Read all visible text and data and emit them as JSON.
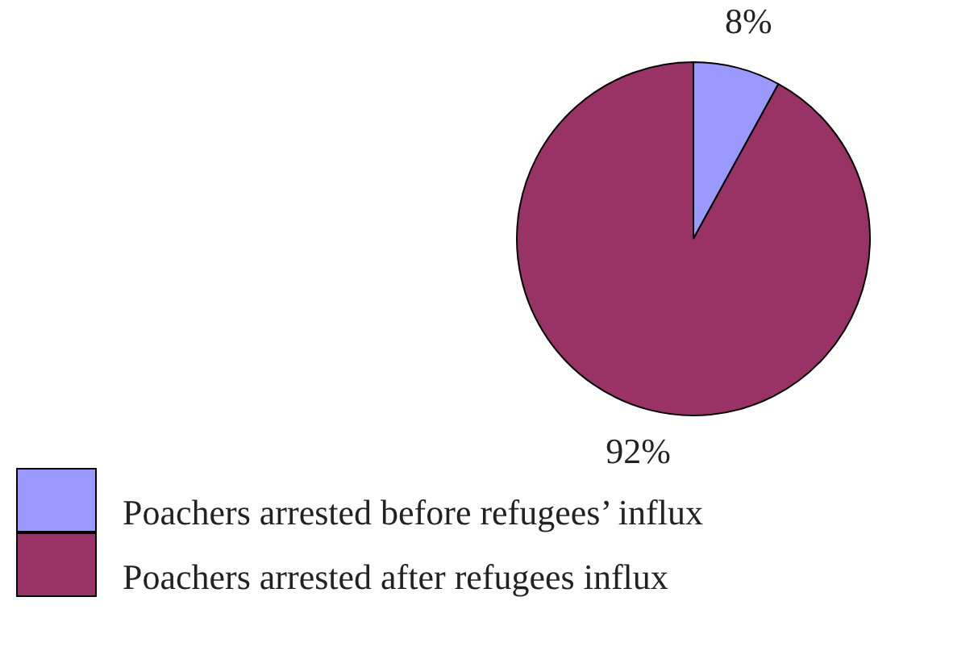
{
  "chart_data": {
    "type": "pie",
    "categories": [
      "Poachers arrested before refugees’ influx",
      "Poachers arrested after refugees influx"
    ],
    "values": [
      8,
      92
    ],
    "colors": [
      "#9999ff",
      "#993366"
    ],
    "value_labels": [
      "8%",
      "92%"
    ],
    "legend": "bottom left"
  }
}
